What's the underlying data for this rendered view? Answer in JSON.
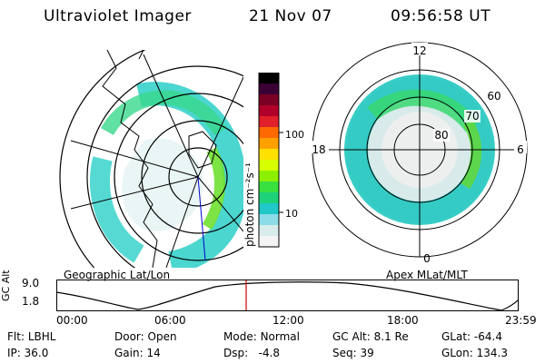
{
  "header": {
    "title": "Ultraviolet Imager",
    "date": "21 Nov 07",
    "time": "09:56:58 UT"
  },
  "geo_panel": {
    "label": "Geographic Lat/Lon"
  },
  "colorbar": {
    "unit_label": "photon cm⁻²s⁻¹",
    "ticks": [
      "100",
      "10"
    ],
    "colors": [
      "#000000",
      "#3a0036",
      "#7a0024",
      "#b0002a",
      "#e0202a",
      "#ff6a00",
      "#ffa000",
      "#ffe000",
      "#d8ff00",
      "#8cf000",
      "#38e040",
      "#1ed27a",
      "#20c8c8",
      "#8cdce8",
      "#d8ecec",
      "#f4f4f4"
    ]
  },
  "apex_panel": {
    "label": "Apex MLat/MLT",
    "mlt_labels": {
      "top": "12",
      "left": "18",
      "right": "6",
      "bottom": "0"
    },
    "lat_labels": [
      "60",
      "70",
      "80"
    ]
  },
  "altitude_plot": {
    "ylabel": "GC Alt",
    "yticks": [
      "9.0",
      "1.8"
    ],
    "xticks": [
      "00:00",
      "06:00",
      "12:00",
      "18:00",
      "23:59"
    ],
    "current_marker_color": "#cc0000"
  },
  "status": {
    "flt_label": "Flt:",
    "flt_value": "LBHL",
    "ip_label": "IP:",
    "ip_value": "36.0",
    "door_label": "Door:",
    "door_value": "Open",
    "gain_label": "Gain:",
    "gain_value": "14",
    "mode_label": "Mode:",
    "mode_value": "Normal",
    "dsp_label": "Dsp:",
    "dsp_value": "-4.8",
    "gcalt_label": "GC Alt:",
    "gcalt_value": "8.1 Re",
    "seq_label": "Seq:",
    "seq_value": "39",
    "glat_label": "GLat:",
    "glat_value": "-64.4",
    "glon_label": "GLon:",
    "glon_value": "134.3"
  }
}
